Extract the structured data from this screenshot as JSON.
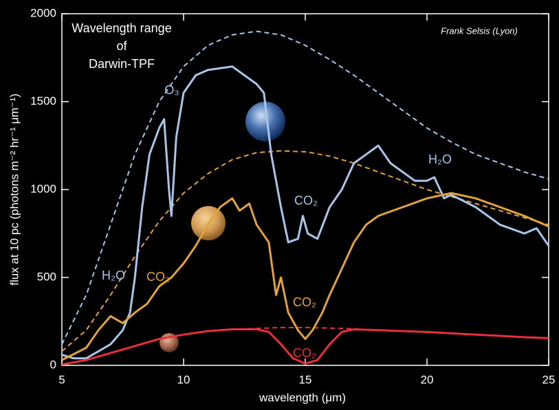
{
  "chart_data": {
    "type": "line",
    "xlabel": "wavelength (μm)",
    "ylabel": "flux at 10 pc (photons m⁻² hr⁻¹ μm⁻¹)",
    "xlim": [
      5,
      25
    ],
    "ylim": [
      0,
      2000
    ],
    "xticks": [
      5,
      10,
      15,
      20,
      25
    ],
    "yticks": [
      0,
      500,
      1000,
      1500,
      2000
    ],
    "annotations": [
      "Wavelength range",
      "of",
      "Darwin-TPF",
      "Frank Selsis (Lyon)",
      "O₃",
      "H₂O",
      "CO₂",
      "H₂O",
      "CO₂",
      "CO₂",
      "CO₂"
    ],
    "series": [
      {
        "color": "#a9c6e8",
        "dashed": true,
        "x": [
          5,
          6,
          7,
          8,
          9,
          10,
          11,
          12,
          13,
          14,
          15,
          16,
          17,
          18,
          19,
          20,
          21,
          22,
          23,
          24,
          25
        ],
        "values": [
          120,
          400,
          800,
          1200,
          1500,
          1700,
          1820,
          1880,
          1900,
          1880,
          1820,
          1740,
          1650,
          1550,
          1450,
          1350,
          1270,
          1200,
          1150,
          1100,
          1060
        ]
      },
      {
        "color": "#e2a43a",
        "dashed": true,
        "x": [
          5,
          6,
          7,
          8,
          9,
          10,
          11,
          12,
          13,
          14,
          15,
          16,
          17,
          18,
          19,
          20,
          21,
          22,
          23,
          24,
          25
        ],
        "values": [
          80,
          200,
          400,
          620,
          820,
          980,
          1090,
          1170,
          1210,
          1220,
          1215,
          1190,
          1150,
          1100,
          1050,
          1000,
          960,
          920,
          880,
          840,
          800
        ]
      },
      {
        "color": "#e8303a",
        "dashed": true,
        "x": [
          5,
          6,
          7,
          8,
          9,
          10,
          11,
          12,
          13,
          14,
          15,
          16,
          17,
          18,
          19,
          20,
          21,
          22,
          23,
          24,
          25
        ],
        "values": [
          5,
          30,
          70,
          110,
          150,
          175,
          195,
          205,
          210,
          215,
          215,
          212,
          208,
          200,
          195,
          190,
          182,
          175,
          168,
          160,
          155
        ]
      },
      {
        "color": "#a9c6e8",
        "dashed": false,
        "x": [
          5,
          5.5,
          6,
          6.5,
          7,
          7.5,
          7.8,
          8,
          8.3,
          8.6,
          9,
          9.2,
          9.4,
          9.5,
          9.7,
          10,
          10.5,
          11,
          11.5,
          12,
          12.5,
          13,
          13.3,
          13.6,
          14,
          14.3,
          14.7,
          14.9,
          15.1,
          15.5,
          16,
          16.5,
          17,
          17.5,
          18,
          18.5,
          19,
          19.5,
          20,
          20.3,
          20.7,
          21,
          22,
          23,
          24,
          24.5,
          25
        ],
        "values": [
          60,
          40,
          40,
          80,
          120,
          200,
          300,
          500,
          900,
          1200,
          1350,
          1400,
          1000,
          850,
          1300,
          1550,
          1650,
          1680,
          1690,
          1700,
          1650,
          1600,
          1550,
          1200,
          900,
          700,
          720,
          850,
          750,
          720,
          900,
          1000,
          1150,
          1200,
          1250,
          1150,
          1100,
          1050,
          1050,
          1070,
          950,
          970,
          900,
          800,
          750,
          780,
          680
        ]
      },
      {
        "color": "#e2a43a",
        "dashed": false,
        "x": [
          5,
          6,
          6.5,
          7,
          7.5,
          8,
          8.5,
          9,
          9.5,
          10,
          10.5,
          11,
          11.5,
          12,
          12.3,
          12.7,
          13,
          13.5,
          13.8,
          14,
          14.3,
          14.7,
          15,
          15.3,
          15.7,
          16,
          16.5,
          17,
          17.5,
          18,
          19,
          20,
          21,
          22,
          23,
          24,
          25
        ],
        "values": [
          30,
          100,
          200,
          280,
          240,
          300,
          350,
          450,
          500,
          580,
          680,
          800,
          900,
          950,
          880,
          920,
          800,
          700,
          400,
          500,
          300,
          200,
          150,
          200,
          300,
          400,
          550,
          700,
          800,
          850,
          900,
          950,
          980,
          950,
          900,
          850,
          790
        ]
      },
      {
        "color": "#e8303a",
        "dashed": false,
        "x": [
          5,
          6,
          7,
          8,
          9,
          10,
          11,
          12,
          13,
          13.5,
          14,
          14.5,
          15,
          15.5,
          16,
          16.5,
          17,
          18,
          19,
          20,
          21,
          22,
          23,
          24,
          25
        ],
        "values": [
          5,
          30,
          70,
          110,
          150,
          175,
          195,
          205,
          205,
          190,
          120,
          40,
          10,
          30,
          120,
          190,
          205,
          200,
          195,
          190,
          182,
          175,
          168,
          160,
          155
        ]
      }
    ]
  }
}
